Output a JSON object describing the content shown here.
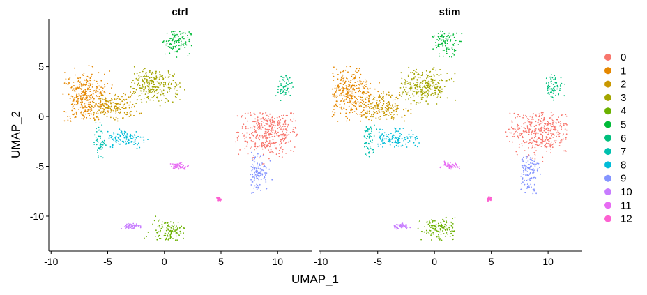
{
  "chart_data": {
    "type": "scatter",
    "title": "",
    "xlabel": "UMAP_1",
    "ylabel": "UMAP_2",
    "panels": [
      "ctrl",
      "stim"
    ],
    "xlim": [
      -10.2,
      13
    ],
    "ylim": [
      -13.5,
      9.8
    ],
    "x_ticks": [
      -10,
      -5,
      0,
      5,
      10
    ],
    "x_tick_labels": [
      "-10",
      "-5",
      "0",
      "5",
      "10"
    ],
    "y_ticks": [
      5,
      0,
      -5,
      -10
    ],
    "y_tick_labels": [
      "5",
      "0",
      "-5",
      "-10"
    ],
    "grid": false,
    "legend_position": "right",
    "legend": [
      "0",
      "1",
      "2",
      "3",
      "4",
      "5",
      "6",
      "7",
      "8",
      "9",
      "10",
      "11",
      "12"
    ],
    "cluster_colors": [
      "#F8766D",
      "#E58700",
      "#C99800",
      "#A3A500",
      "#6BB100",
      "#00BA38",
      "#00BF7D",
      "#00C0AF",
      "#00BCD8",
      "#8494FF",
      "#C77CFF",
      "#E76BF3",
      "#FD61D1"
    ],
    "clusters": [
      {
        "cluster": "0",
        "ctrl_center": [
          9.2,
          -1.5
        ],
        "stim_center": [
          9.3,
          -1.4
        ],
        "x_range": [
          6.2,
          11.8
        ],
        "y_range": [
          -4.8,
          0.4
        ]
      },
      {
        "cluster": "1",
        "ctrl_center": [
          -7.0,
          1.8
        ],
        "stim_center": [
          -7.5,
          2.2
        ],
        "x_range": [
          -9.0,
          -4.5
        ],
        "y_range": [
          -0.5,
          5.2
        ]
      },
      {
        "cluster": "2",
        "ctrl_center": [
          -4.5,
          1.0
        ],
        "stim_center": [
          -4.5,
          1.0
        ],
        "x_range": [
          -6.5,
          -2.0
        ],
        "y_range": [
          -0.5,
          2.5
        ]
      },
      {
        "cluster": "3",
        "ctrl_center": [
          -1.0,
          3.0
        ],
        "stim_center": [
          -1.0,
          3.0
        ],
        "x_range": [
          -3.0,
          2.0
        ],
        "y_range": [
          1.0,
          5.0
        ]
      },
      {
        "cluster": "4",
        "ctrl_center": [
          0.5,
          -11.5
        ],
        "stim_center": [
          0.5,
          -11.3
        ],
        "x_range": [
          -1.8,
          1.8
        ],
        "y_range": [
          -12.5,
          -10.0
        ]
      },
      {
        "cluster": "5",
        "ctrl_center": [
          1.0,
          7.5
        ],
        "stim_center": [
          1.0,
          7.5
        ],
        "x_range": [
          -0.2,
          2.5
        ],
        "y_range": [
          5.8,
          8.6
        ]
      },
      {
        "cluster": "6",
        "ctrl_center": [
          10.5,
          3.0
        ],
        "stim_center": [
          10.5,
          3.0
        ],
        "x_range": [
          9.8,
          11.5
        ],
        "y_range": [
          1.5,
          4.2
        ]
      },
      {
        "cluster": "7",
        "ctrl_center": [
          -5.8,
          -2.5
        ],
        "stim_center": [
          -5.8,
          -2.5
        ],
        "x_range": [
          -6.2,
          -5.0
        ],
        "y_range": [
          -4.2,
          -0.5
        ]
      },
      {
        "cluster": "8",
        "ctrl_center": [
          -3.5,
          -2.2
        ],
        "stim_center": [
          -3.5,
          -2.2
        ],
        "x_range": [
          -5.0,
          -1.0
        ],
        "y_range": [
          -3.2,
          -1.0
        ]
      },
      {
        "cluster": "9",
        "ctrl_center": [
          8.2,
          -5.5
        ],
        "stim_center": [
          8.2,
          -5.5
        ],
        "x_range": [
          7.6,
          9.6
        ],
        "y_range": [
          -7.8,
          -3.5
        ]
      },
      {
        "cluster": "10",
        "ctrl_center": [
          -3.0,
          -11.0
        ],
        "stim_center": [
          -3.0,
          -11.0
        ],
        "x_range": [
          -3.8,
          -2.0
        ],
        "y_range": [
          -11.3,
          -10.7
        ]
      },
      {
        "cluster": "11",
        "ctrl_center": [
          1.3,
          -5.0
        ],
        "stim_center": [
          1.3,
          -5.0
        ],
        "x_range": [
          0.5,
          2.3
        ],
        "y_range": [
          -5.3,
          -4.5
        ]
      },
      {
        "cluster": "12",
        "ctrl_center": [
          4.8,
          -8.3
        ],
        "stim_center": [
          4.8,
          -8.3
        ],
        "x_range": [
          4.6,
          5.0
        ],
        "y_range": [
          -8.5,
          -8.0
        ]
      }
    ]
  }
}
